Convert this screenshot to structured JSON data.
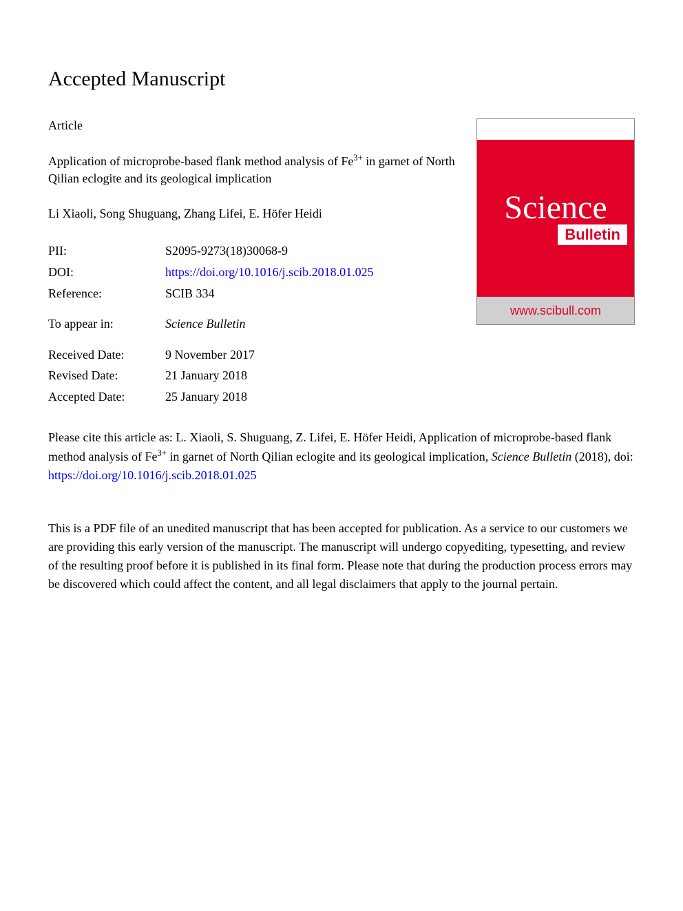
{
  "heading": "Accepted Manuscript",
  "article_type": "Article",
  "title_part1": "Application of microprobe-based flank method analysis of Fe",
  "title_sup": "3+",
  "title_part2": " in garnet of North Qilian eclogite and its geological implication",
  "authors": "Li Xiaoli, Song Shuguang, Zhang Lifei, E. Höfer Heidi",
  "meta": {
    "pii_label": "PII:",
    "pii_value": "S2095-9273(18)30068-9",
    "doi_label": "DOI:",
    "doi_url": "https://doi.org/10.1016/j.scib.2018.01.025",
    "reference_label": "Reference:",
    "reference_value": "SCIB 334",
    "appear_label": "To appear in:",
    "appear_value": "Science Bulletin",
    "received_label": "Received Date:",
    "received_value": "9 November 2017",
    "revised_label": "Revised Date:",
    "revised_value": "21 January 2018",
    "accepted_label": "Accepted Date:",
    "accepted_value": "25 January 2018"
  },
  "cover": {
    "science": "Science",
    "bulletin": "Bulletin",
    "url": "www.scibull.com"
  },
  "citation": {
    "prefix": "Please cite this article as: L. Xiaoli, S. Shuguang, Z. Lifei, E. Höfer Heidi, Application of microprobe-based flank method analysis of Fe",
    "sup": "3+",
    "mid": " in garnet of North Qilian eclogite and its geological implication, ",
    "journal": "Science Bulletin",
    "year": " (2018), doi: ",
    "doi_url": "https://doi.org/10.1016/j.scib.2018.01.025"
  },
  "disclaimer": "This is a PDF file of an unedited manuscript that has been accepted for publication. As a service to our customers we are providing this early version of the manuscript. The manuscript will undergo copyediting, typesetting, and review of the resulting proof before it is published in its final form. Please note that during the production process errors may be discovered which could affect the content, and all legal disclaimers that apply to the journal pertain.",
  "colors": {
    "link": "#0000ee",
    "cover_red": "#e00028",
    "cover_gray": "#d0d0d0",
    "text": "#000000",
    "bg": "#ffffff"
  },
  "fonts": {
    "body_family": "Georgia, Times New Roman, serif",
    "body_size": 18,
    "heading_size": 30
  }
}
